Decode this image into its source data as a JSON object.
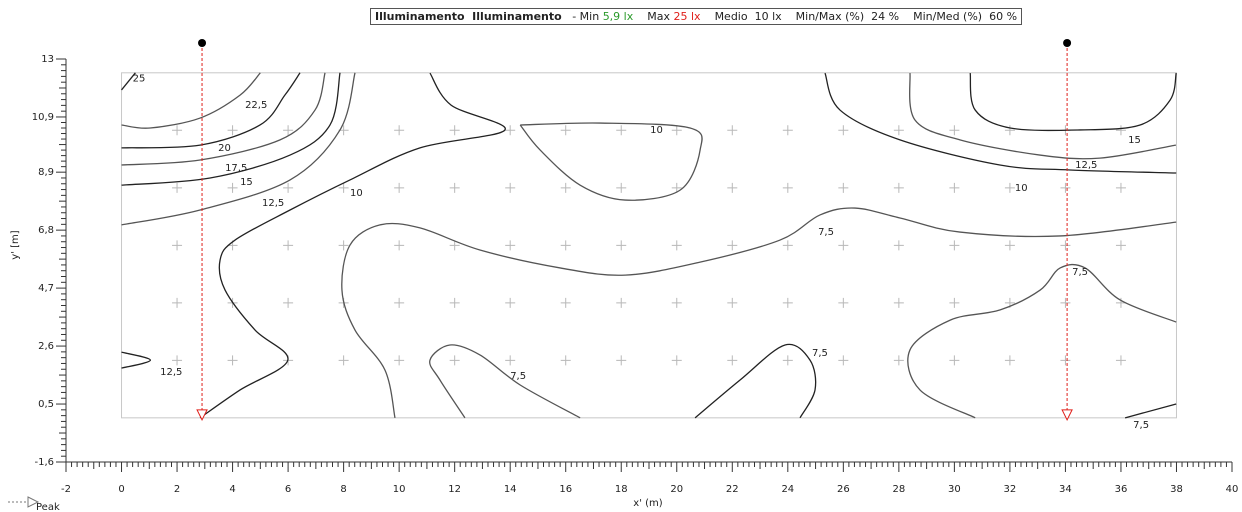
{
  "chart_data": {
    "type": "contour",
    "header": {
      "title": "Illuminamento  Illuminamento",
      "min_label": "- Min",
      "min": "5,9 lx",
      "max_label": "Max",
      "max": "25 lx",
      "mean": "Medio  10 lx",
      "min_max": "Min/Max (%)  24 %",
      "min_mean": "Min/Med (%)  60 %"
    },
    "xlabel": "x' (m)",
    "ylabel": "y' [m]",
    "xlim": [
      -2,
      40
    ],
    "ylim": [
      -1.6,
      13
    ],
    "xticks": [
      -2,
      0,
      2,
      4,
      6,
      8,
      10,
      12,
      14,
      16,
      18,
      20,
      22,
      24,
      26,
      28,
      30,
      32,
      34,
      36,
      38,
      40
    ],
    "yticks": [
      {
        "value": -1.6,
        "label": "-1,6"
      },
      {
        "value": 0.5,
        "label": "0,5"
      },
      {
        "value": 2.6,
        "label": "2,6"
      },
      {
        "value": 4.7,
        "label": "4,7"
      },
      {
        "value": 6.8,
        "label": "6,8"
      },
      {
        "value": 8.9,
        "label": "8,9"
      },
      {
        "value": 10.9,
        "label": "10,9"
      },
      13
    ],
    "room": {
      "xlim": [
        0,
        38
      ],
      "ylim": [
        0,
        12.5
      ]
    },
    "peaks": {
      "name": "Peak",
      "color": "#e0201b",
      "x": [
        2.9,
        34.06
      ]
    },
    "contours": [
      {
        "level": 25,
        "value_label": "25",
        "label_xy": [
          0.4,
          12.3
        ],
        "x": [
          0,
          0.5
        ],
        "y": [
          11.88,
          12.5
        ]
      },
      {
        "level": 22.5,
        "value_label": "22,5",
        "label_xy": [
          4.45,
          11.33
        ],
        "x": [
          0,
          1.03,
          2.83,
          4.27,
          5.0
        ],
        "y": [
          10.61,
          10.5,
          10.86,
          11.69,
          12.5
        ]
      },
      {
        "level": 20,
        "value_label": "20",
        "label_xy": [
          3.48,
          9.78
        ],
        "x": [
          0,
          2.83,
          4.99,
          5.89,
          6.43
        ],
        "y": [
          9.78,
          9.88,
          10.61,
          11.7,
          12.5
        ]
      },
      {
        "level": 17.5,
        "value_label": "17,5",
        "label_xy": [
          3.73,
          9.05
        ],
        "x": [
          0,
          2.83,
          5.71,
          6.97,
          7.33
        ],
        "y": [
          9.16,
          9.34,
          10.07,
          11.15,
          12.5
        ]
      },
      {
        "level": 15,
        "value_label": "15",
        "label_xy": [
          4.27,
          8.54
        ],
        "x": [
          0,
          3.19,
          6.07,
          7.51,
          7.87
        ],
        "y": [
          8.43,
          8.69,
          9.52,
          10.61,
          12.5
        ]
      },
      {
        "level": 12.5,
        "value_label": "12,5",
        "label_xy": [
          5.06,
          7.78
        ],
        "x": [
          0,
          2.83,
          6.07,
          7.87,
          8.41
        ],
        "y": [
          6.99,
          7.53,
          8.62,
          10.43,
          12.5
        ]
      },
      {
        "level": 10,
        "value_label": "10",
        "label_xy": [
          8.23,
          8.14
        ],
        "x": [
          11.11,
          11.87,
          13.81,
          10.75,
          8.23,
          6.07,
          4.09,
          3.55,
          3.73,
          4.81,
          5.99,
          4.27,
          2.83
        ],
        "y": [
          12.49,
          11.33,
          10.43,
          9.78,
          8.62,
          7.53,
          6.44,
          5.72,
          4.63,
          3.18,
          2.09,
          1.01,
          0
        ]
      },
      {
        "level": 10,
        "value_label": "10",
        "label_xy": [
          19.04,
          10.43
        ],
        "x": [
          14.36,
          17.24,
          20.48,
          20.84,
          20.12,
          18.14,
          16.52,
          15.08,
          14.36
        ],
        "y": [
          10.61,
          10.68,
          10.5,
          9.7,
          8.25,
          7.89,
          8.43,
          9.7,
          10.61
        ]
      },
      {
        "level": 10,
        "value_label": "10",
        "label_xy": [
          32.18,
          8.33
        ],
        "x": [
          25.34,
          25.88,
          28.04,
          31.64,
          34.17,
          37.99
        ],
        "y": [
          12.49,
          11.15,
          10.07,
          9.16,
          8.98,
          8.87
        ]
      },
      {
        "level": 12.5,
        "value_label": "12,5",
        "label_xy": [
          34.35,
          9.16
        ],
        "x": [
          28.4,
          28.58,
          30.2,
          33.08,
          35.24,
          37.98
        ],
        "y": [
          12.49,
          10.79,
          10.07,
          9.52,
          9.41,
          9.88
        ]
      },
      {
        "level": 15,
        "value_label": "15",
        "label_xy": [
          36.26,
          10.07
        ],
        "x": [
          30.57,
          30.75,
          32.01,
          34.53,
          36.69,
          37.77,
          37.99
        ],
        "y": [
          12.49,
          11.15,
          10.5,
          10.43,
          10.61,
          11.51,
          12.49
        ]
      },
      {
        "level": 7.5,
        "value_label": "7,5",
        "label_xy": [
          25.09,
          6.73
        ],
        "x": [
          9.85,
          9.49,
          8.41,
          7.94,
          8.23,
          9.31,
          10.75,
          12.91,
          15.8,
          18.14,
          20.84,
          23.72,
          25.16,
          26.42,
          28.04,
          30.2,
          33.81,
          37.99
        ],
        "y": [
          0,
          1.73,
          3.18,
          4.63,
          6.26,
          6.99,
          6.88,
          6.08,
          5.43,
          5.17,
          5.64,
          6.44,
          7.35,
          7.6,
          7.24,
          6.73,
          6.59,
          7.09
        ]
      },
      {
        "level": 12.5,
        "value_label": "12,5",
        "label_xy": [
          1.39,
          1.66
        ],
        "x": [
          0,
          1.04,
          0
        ],
        "y": [
          2.38,
          2.09,
          1.8
        ]
      },
      {
        "level": 7.5,
        "value_label": "7,5",
        "label_xy": [
          14.0,
          1.51
        ],
        "x": [
          12.37,
          11.47,
          11.11,
          11.83,
          12.91,
          14.36,
          16.52
        ],
        "y": [
          0,
          1.37,
          2.09,
          2.64,
          2.28,
          1.19,
          0
        ]
      },
      {
        "level": 7.5,
        "value_label": "7,5",
        "label_xy": [
          24.87,
          2.35
        ],
        "x": [
          20.66,
          22.28,
          23.9,
          24.8,
          24.98,
          24.44
        ],
        "y": [
          0,
          1.37,
          2.64,
          2.09,
          1.01,
          0
        ]
      },
      {
        "level": 7.5,
        "value_label": "7,5",
        "label_xy": [
          34.24,
          5.28
        ],
        "x": [
          37.99,
          35.97,
          34.71,
          33.81,
          33.09,
          31.65,
          29.85,
          28.4,
          28.76,
          30.75
        ],
        "y": [
          3.47,
          4.27,
          5.43,
          5.43,
          4.63,
          3.91,
          3.54,
          2.46,
          1.01,
          0
        ]
      },
      {
        "level": 7.5,
        "value_label": "7,5",
        "label_xy": [
          36.44,
          -0.26
        ],
        "x": [
          36.15,
          37.99
        ],
        "y": [
          0,
          0.5
        ]
      }
    ]
  }
}
